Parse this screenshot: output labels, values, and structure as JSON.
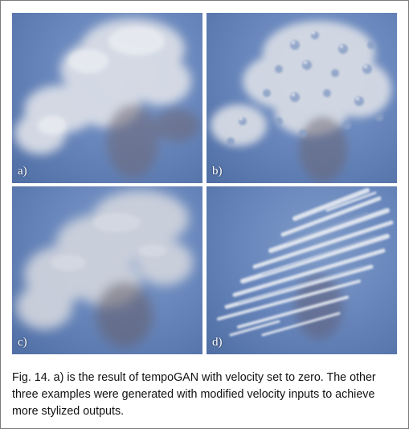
{
  "figure": {
    "panels": [
      {
        "label": "a)",
        "style": "smooth-smoke"
      },
      {
        "label": "b)",
        "style": "bubbly-smoke"
      },
      {
        "label": "c)",
        "style": "diffuse-smoke"
      },
      {
        "label": "d)",
        "style": "streaked-smoke"
      }
    ],
    "background_color": "#6a88bd",
    "caption": {
      "label": "Fig. 14.",
      "text": "a) is the result of tempoGAN with velocity set to zero. The other three examples were generated with modified velocity inputs to achieve more stylized outputs."
    }
  }
}
